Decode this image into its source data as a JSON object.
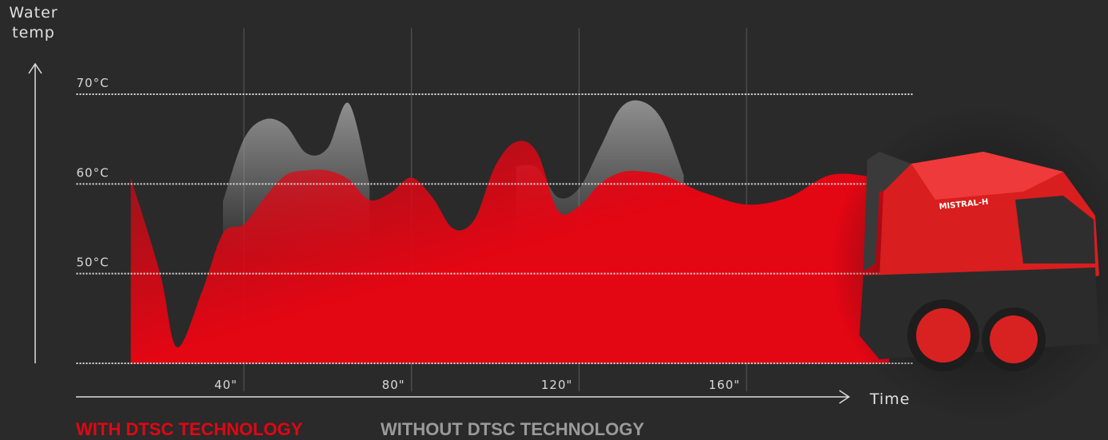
{
  "chart_data": {
    "type": "area",
    "ylabel": [
      "Water",
      "temp"
    ],
    "xlabel": "Time",
    "x": [
      13,
      20,
      24,
      30,
      35,
      40,
      45,
      50,
      55,
      60,
      65,
      70,
      75,
      80,
      85,
      90,
      95,
      100,
      105,
      110,
      115,
      120,
      125,
      130,
      135,
      140,
      145,
      150,
      160,
      170,
      180,
      190,
      194
    ],
    "series": [
      {
        "name": "WITHOUT DTSC TECHNOLOGY",
        "color": "#9a9a9a",
        "values": [
          null,
          null,
          null,
          null,
          58,
          65,
          67.2,
          66.5,
          63.4,
          64,
          69,
          60,
          null,
          null,
          null,
          null,
          null,
          null,
          62,
          61.8,
          58.5,
          59.5,
          64,
          68.5,
          69.2,
          67,
          61,
          null,
          null,
          null,
          null,
          null,
          null
        ]
      },
      {
        "name": "WITH DTSC TECHNOLOGY",
        "color": "#e30613",
        "values": [
          60.7,
          50,
          41.8,
          48,
          54.5,
          55.5,
          58.5,
          61,
          61.5,
          61.5,
          60.5,
          58.2,
          59,
          60.7,
          58.5,
          55,
          56,
          62,
          64.7,
          63.5,
          57,
          57.5,
          60,
          61.3,
          61.4,
          61,
          60,
          59,
          57.7,
          58.5,
          61,
          60.8,
          60.5
        ]
      }
    ],
    "xlim": [
      0,
      200
    ],
    "ylim": [
      40,
      70
    ],
    "xticks": [
      {
        "value": 40,
        "label": "40\""
      },
      {
        "value": 80,
        "label": "80\""
      },
      {
        "value": 120,
        "label": "120\""
      },
      {
        "value": 160,
        "label": "160\""
      }
    ],
    "yticks": [
      {
        "value": 50,
        "label": "50°C"
      },
      {
        "value": 60,
        "label": "60°C"
      },
      {
        "value": 70,
        "label": "70°C"
      }
    ],
    "grid": true
  }
}
